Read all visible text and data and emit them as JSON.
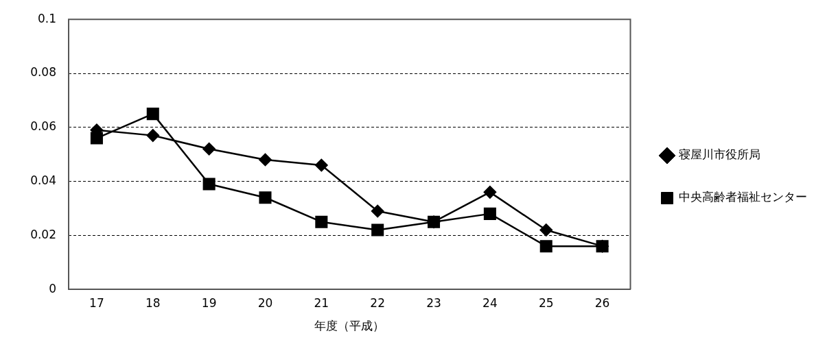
{
  "chart_data": {
    "type": "line",
    "xlabel": "年度（平成）",
    "categories": [
      "17",
      "18",
      "19",
      "20",
      "21",
      "22",
      "23",
      "24",
      "25",
      "26"
    ],
    "series": [
      {
        "name": "寝屋川市役所局",
        "color": "#000000",
        "marker": "diamond",
        "values": [
          0.059,
          0.057,
          0.052,
          0.048,
          0.046,
          0.029,
          0.025,
          0.036,
          0.022,
          0.016
        ]
      },
      {
        "name": "中央高齢者福祉センター",
        "color": "#000000",
        "marker": "square",
        "values": [
          0.056,
          0.065,
          0.039,
          0.034,
          0.025,
          0.022,
          0.025,
          0.028,
          0.016,
          0.016
        ]
      }
    ],
    "ylim": [
      0,
      0.1
    ],
    "yticks": [
      0,
      0.02,
      0.04,
      0.06,
      0.08,
      0.1
    ],
    "grid": "y",
    "legend": "right",
    "line_style": "solid"
  }
}
